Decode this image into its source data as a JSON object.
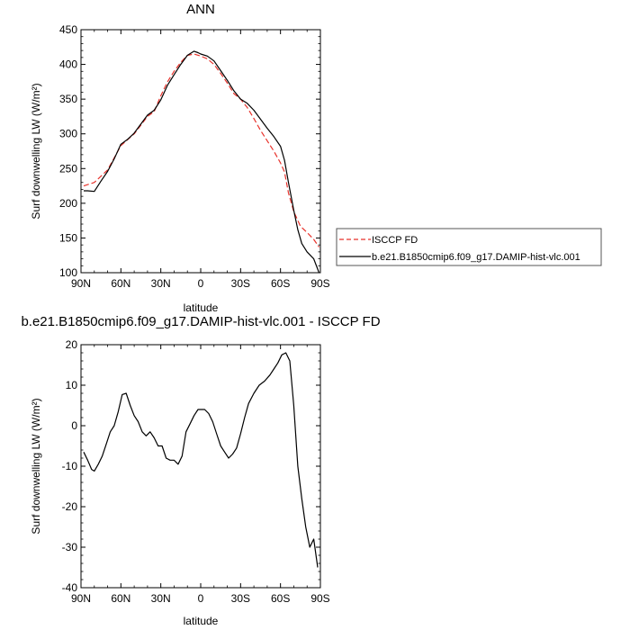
{
  "chart_data": [
    {
      "type": "line",
      "title": "ANN",
      "xlabel": "latitude",
      "ylabel": "Surf downwelling LW (W/m²)",
      "xticks": [
        "90N",
        "60N",
        "30N",
        "0",
        "30S",
        "60S",
        "90S"
      ],
      "yticks": [
        "100",
        "150",
        "200",
        "250",
        "300",
        "350",
        "400",
        "450"
      ],
      "xlim": [
        90,
        -90
      ],
      "ylim": [
        100,
        450
      ],
      "legend_placement": "right",
      "series": [
        {
          "name": "ISCCP FD",
          "color": "#e8322b",
          "dash": "dashed",
          "x": [
            88,
            80,
            70,
            60,
            50,
            40,
            35,
            30,
            25,
            20,
            15,
            10,
            5,
            0,
            -5,
            -10,
            -15,
            -20,
            -25,
            -30,
            -35,
            -40,
            -45,
            -50,
            -55,
            -60,
            -63,
            -66,
            -70,
            -75,
            -80,
            -85,
            -89
          ],
          "y": [
            225,
            230,
            248,
            283,
            300,
            325,
            332,
            355,
            375,
            390,
            403,
            413,
            415,
            412,
            408,
            400,
            387,
            373,
            358,
            350,
            338,
            322,
            305,
            290,
            275,
            258,
            245,
            215,
            188,
            167,
            158,
            148,
            137
          ]
        },
        {
          "name": "b.e21.B1850cmip6.f09_g17.DAMIP-hist-vlc.001",
          "color": "#000000",
          "dash": "solid",
          "x": [
            88,
            85,
            80,
            75,
            70,
            65,
            60,
            55,
            50,
            45,
            40,
            35,
            30,
            25,
            20,
            15,
            10,
            5,
            2,
            0,
            -5,
            -10,
            -15,
            -20,
            -25,
            -30,
            -35,
            -40,
            -45,
            -50,
            -55,
            -60,
            -63,
            -66,
            -70,
            -73,
            -76,
            -80,
            -85,
            -89
          ],
          "y": [
            218,
            218,
            217,
            232,
            246,
            264,
            285,
            292,
            301,
            314,
            327,
            334,
            349,
            370,
            385,
            400,
            413,
            419,
            417,
            415,
            412,
            405,
            391,
            377,
            362,
            350,
            344,
            334,
            321,
            308,
            296,
            282,
            262,
            230,
            190,
            162,
            142,
            130,
            120,
            100
          ]
        }
      ]
    },
    {
      "type": "line",
      "title": "b.e21.B1850cmip6.f09_g17.DAMIP-hist-vlc.001 - ISCCP FD",
      "xlabel": "latitude",
      "ylabel": "Surf downwelling LW (W/m²)",
      "xticks": [
        "90N",
        "60N",
        "30N",
        "0",
        "30S",
        "60S",
        "90S"
      ],
      "yticks": [
        "-40",
        "-30",
        "-20",
        "-10",
        "0",
        "10",
        "20"
      ],
      "xlim": [
        90,
        -90
      ],
      "ylim": [
        -40,
        20
      ],
      "series": [
        {
          "color": "#000000",
          "dash": "solid",
          "x": [
            88,
            85,
            82,
            80,
            77,
            74,
            71,
            68,
            65,
            62,
            59,
            56,
            53,
            50,
            47,
            44,
            41,
            38,
            35,
            32,
            29,
            26,
            23,
            20,
            17,
            14,
            11,
            8,
            5,
            2,
            0,
            -3,
            -6,
            -9,
            -12,
            -15,
            -18,
            -21,
            -24,
            -27,
            -30,
            -33,
            -36,
            -40,
            -44,
            -48,
            -52,
            -55,
            -58,
            -61,
            -64,
            -67,
            -70,
            -73,
            -76,
            -79,
            -82,
            -85,
            -88
          ],
          "y": [
            -6.5,
            -8.5,
            -10.8,
            -11.2,
            -9.5,
            -7.5,
            -4.5,
            -1.5,
            0,
            3.5,
            7.7,
            8,
            5,
            2.5,
            1,
            -1.5,
            -2.5,
            -1.5,
            -3,
            -5,
            -5,
            -8,
            -8.5,
            -8.5,
            -9.5,
            -7.5,
            -1.5,
            0.5,
            2.5,
            4,
            4,
            4,
            3,
            1,
            -2,
            -5,
            -6.5,
            -8,
            -7,
            -5.5,
            -2,
            2,
            5.5,
            8,
            10,
            11,
            12.5,
            14,
            15.5,
            17.5,
            18,
            16,
            5,
            -10,
            -18,
            -25,
            -30,
            -28,
            -35
          ]
        }
      ]
    }
  ]
}
